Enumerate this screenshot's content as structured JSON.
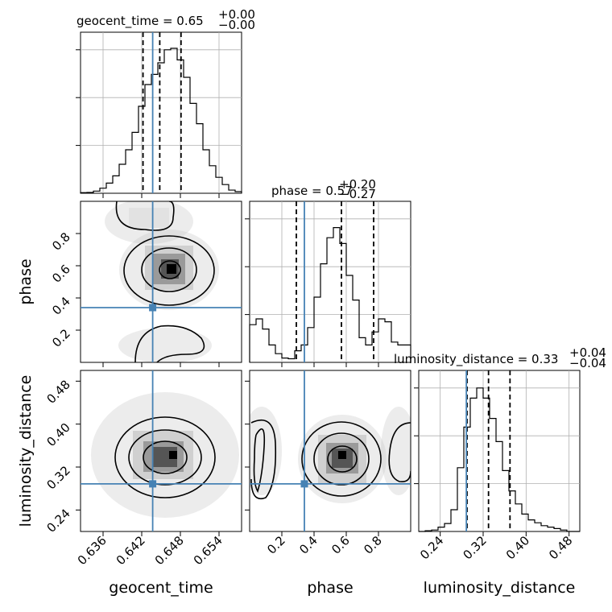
{
  "chart_data": {
    "type": "corner",
    "parameters": [
      "geocent_time",
      "phase",
      "luminosity_distance"
    ],
    "titles": [
      {
        "param": "geocent_time",
        "text": "geocent_time = 0.65",
        "sup": "+0.00",
        "sub": "−0.00"
      },
      {
        "param": "phase",
        "text": "phase = 0.57",
        "sup": "+0.20",
        "sub": "−0.27"
      },
      {
        "param": "luminosity_distance",
        "text": "luminosity_distance = 0.33",
        "sup": "+0.04",
        "sub": "−0.04"
      }
    ],
    "axis_labels": {
      "x": [
        "geocent_time",
        "phase",
        "luminosity_distance"
      ],
      "y": [
        "phase",
        "luminosity_distance"
      ]
    },
    "ranges": [
      [
        0.6325,
        0.6575
      ],
      [
        0.0,
        1.0
      ],
      [
        0.2,
        0.5
      ]
    ],
    "ticks": {
      "geocent_time": [
        "0.636",
        "0.642",
        "0.648",
        "0.654"
      ],
      "phase": [
        "0.2",
        "0.4",
        "0.6",
        "0.8"
      ],
      "luminosity_distance": [
        "0.24",
        "0.32",
        "0.40",
        "0.48"
      ]
    },
    "tick_values": {
      "geocent_time": [
        0.636,
        0.642,
        0.648,
        0.654
      ],
      "phase": [
        0.2,
        0.4,
        0.6,
        0.8
      ],
      "luminosity_distance": [
        0.24,
        0.32,
        0.4,
        0.48
      ]
    },
    "truths": {
      "geocent_time": 0.6437,
      "phase": 0.34,
      "luminosity_distance": 0.2887
    },
    "quantiles": {
      "geocent_time": [
        0.6422,
        0.6448,
        0.6481
      ],
      "phase": [
        0.29,
        0.57,
        0.77
      ],
      "luminosity_distance": [
        0.29,
        0.33,
        0.37
      ]
    },
    "histograms": {
      "geocent_time": [
        0.004,
        0.006,
        0.015,
        0.035,
        0.07,
        0.12,
        0.2,
        0.3,
        0.42,
        0.6,
        0.75,
        0.82,
        0.9,
        0.99,
        1.0,
        0.92,
        0.8,
        0.62,
        0.48,
        0.3,
        0.19,
        0.11,
        0.06,
        0.022,
        0.011
      ],
      "phase": [
        0.26,
        0.3,
        0.23,
        0.12,
        0.06,
        0.03,
        0.025,
        0.08,
        0.12,
        0.24,
        0.45,
        0.68,
        0.86,
        0.93,
        0.82,
        0.6,
        0.43,
        0.17,
        0.12,
        0.21,
        0.3,
        0.28,
        0.14,
        0.12,
        0.12
      ],
      "luminosity_distance": [
        0.0,
        0.005,
        0.01,
        0.03,
        0.055,
        0.15,
        0.44,
        0.72,
        0.92,
        0.99,
        0.92,
        0.78,
        0.62,
        0.42,
        0.28,
        0.19,
        0.12,
        0.08,
        0.06,
        0.04,
        0.03,
        0.02,
        0.01,
        0.0,
        0.0
      ]
    },
    "grid": true,
    "colors": {
      "hist": "#000000",
      "truth": "#4682b4",
      "quantile": "#000000",
      "grid": "#b0b0b0",
      "scatter": "#a8a8a8"
    }
  }
}
